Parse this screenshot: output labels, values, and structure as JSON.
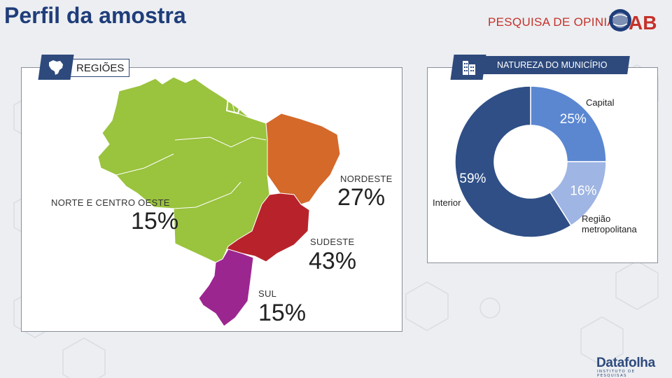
{
  "page": {
    "title": "Perfil da amostra",
    "brand_text": "PESQUISA DE OPINIÃO",
    "brand_logo_text": "OAB",
    "footer_brand": "Datafolha",
    "footer_sub": "INSTITUTO DE PESQUISAS"
  },
  "colors": {
    "title": "#1f3d7a",
    "brand": "#c5312a",
    "norte_centro_oeste": "#9ac33e",
    "nordeste": "#d4692a",
    "sudeste": "#b8232b",
    "sul": "#9c2690",
    "donut_interior": "#2f4f86",
    "donut_capital": "#5b87d1",
    "donut_metropolitana": "#9fb5e3"
  },
  "icons": {
    "regioes_badge": "brazil-map-icon",
    "natureza_badge": "building-icon"
  },
  "chart_data": [
    {
      "type": "map",
      "section_label": "REGIÕES",
      "regions": [
        {
          "name": "NORTE E CENTRO OESTE",
          "value": 15,
          "label": "15%"
        },
        {
          "name": "NORDESTE",
          "value": 27,
          "label": "27%"
        },
        {
          "name": "SUDESTE",
          "value": 43,
          "label": "43%"
        },
        {
          "name": "SUL",
          "value": 15,
          "label": "15%"
        }
      ]
    },
    {
      "type": "pie",
      "donut": true,
      "section_label": "NATUREZA DO MUNICÍPIO",
      "slices": [
        {
          "name": "Capital",
          "value": 25,
          "label": "25%"
        },
        {
          "name": "Região metropolitana",
          "value": 16,
          "label": "16%"
        },
        {
          "name": "Interior",
          "value": 59,
          "label": "59%"
        }
      ]
    }
  ]
}
